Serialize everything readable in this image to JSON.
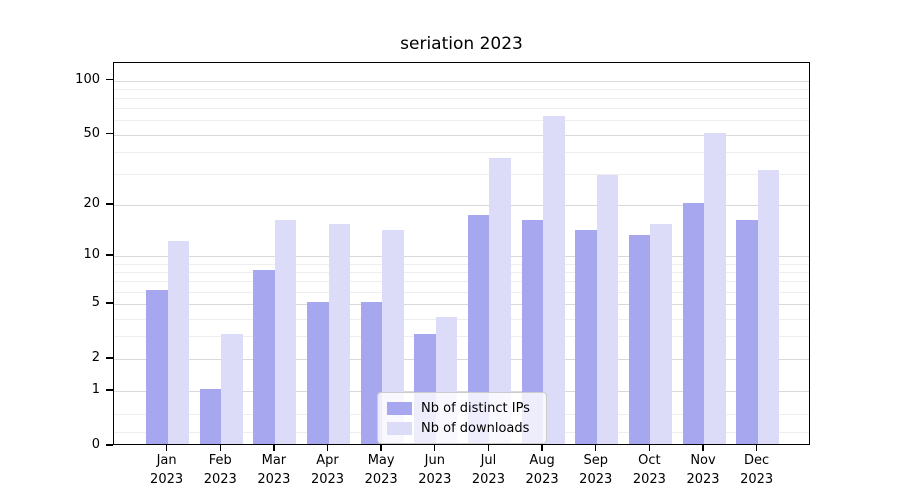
{
  "title": "seriation 2023",
  "colors": {
    "bar_ips": "#a7a7f0",
    "bar_downloads": "#dcdcf8",
    "grid_major": "#d9d9d9",
    "grid_minor": "#eeeeee",
    "axis": "#000000",
    "background": "#ffffff",
    "legend_border": "#cccccc",
    "text": "#000000"
  },
  "legend": {
    "items": [
      {
        "label": "Nb of distinct IPs",
        "series": "ips"
      },
      {
        "label": "Nb of downloads",
        "series": "downloads"
      }
    ]
  },
  "y_axis": {
    "scale": "symlog",
    "max": 125,
    "major_ticks": [
      {
        "label": "100",
        "value": 100
      },
      {
        "label": "50",
        "value": 50
      },
      {
        "label": "20",
        "value": 20
      },
      {
        "label": "10",
        "value": 10
      },
      {
        "label": "5",
        "value": 5
      },
      {
        "label": "2",
        "value": 2
      },
      {
        "label": "1",
        "value": 1
      },
      {
        "label": "0",
        "value": 0
      }
    ],
    "minor_values": [
      0.2,
      0.5,
      3,
      4,
      6,
      7,
      8,
      9,
      30,
      40,
      60,
      70,
      80,
      90
    ]
  },
  "x_axis": {
    "months": [
      "Jan",
      "Feb",
      "Mar",
      "Apr",
      "May",
      "Jun",
      "Jul",
      "Aug",
      "Sep",
      "Oct",
      "Nov",
      "Dec"
    ],
    "year": "2023"
  },
  "chart_data": {
    "type": "bar",
    "categories": [
      "Jan 2023",
      "Feb 2023",
      "Mar 2023",
      "Apr 2023",
      "May 2023",
      "Jun 2023",
      "Jul 2023",
      "Aug 2023",
      "Sep 2023",
      "Oct 2023",
      "Nov 2023",
      "Dec 2023"
    ],
    "series": [
      {
        "name": "Nb of distinct IPs",
        "color": "#a7a7f0",
        "values": [
          6,
          1,
          8,
          5,
          5,
          3,
          17,
          16,
          14,
          13,
          20,
          16
        ]
      },
      {
        "name": "Nb of downloads",
        "color": "#dcdcf8",
        "values": [
          12,
          3,
          16,
          15,
          14,
          4,
          36,
          62,
          29,
          15,
          50,
          31
        ]
      }
    ],
    "title": "seriation 2023",
    "xlabel": "",
    "ylabel": "",
    "ylim": [
      0,
      125
    ],
    "yscale": "symlog",
    "yticks": [
      0,
      1,
      2,
      5,
      10,
      20,
      50,
      100
    ],
    "grid": true,
    "legend_position": "lower center inside"
  }
}
